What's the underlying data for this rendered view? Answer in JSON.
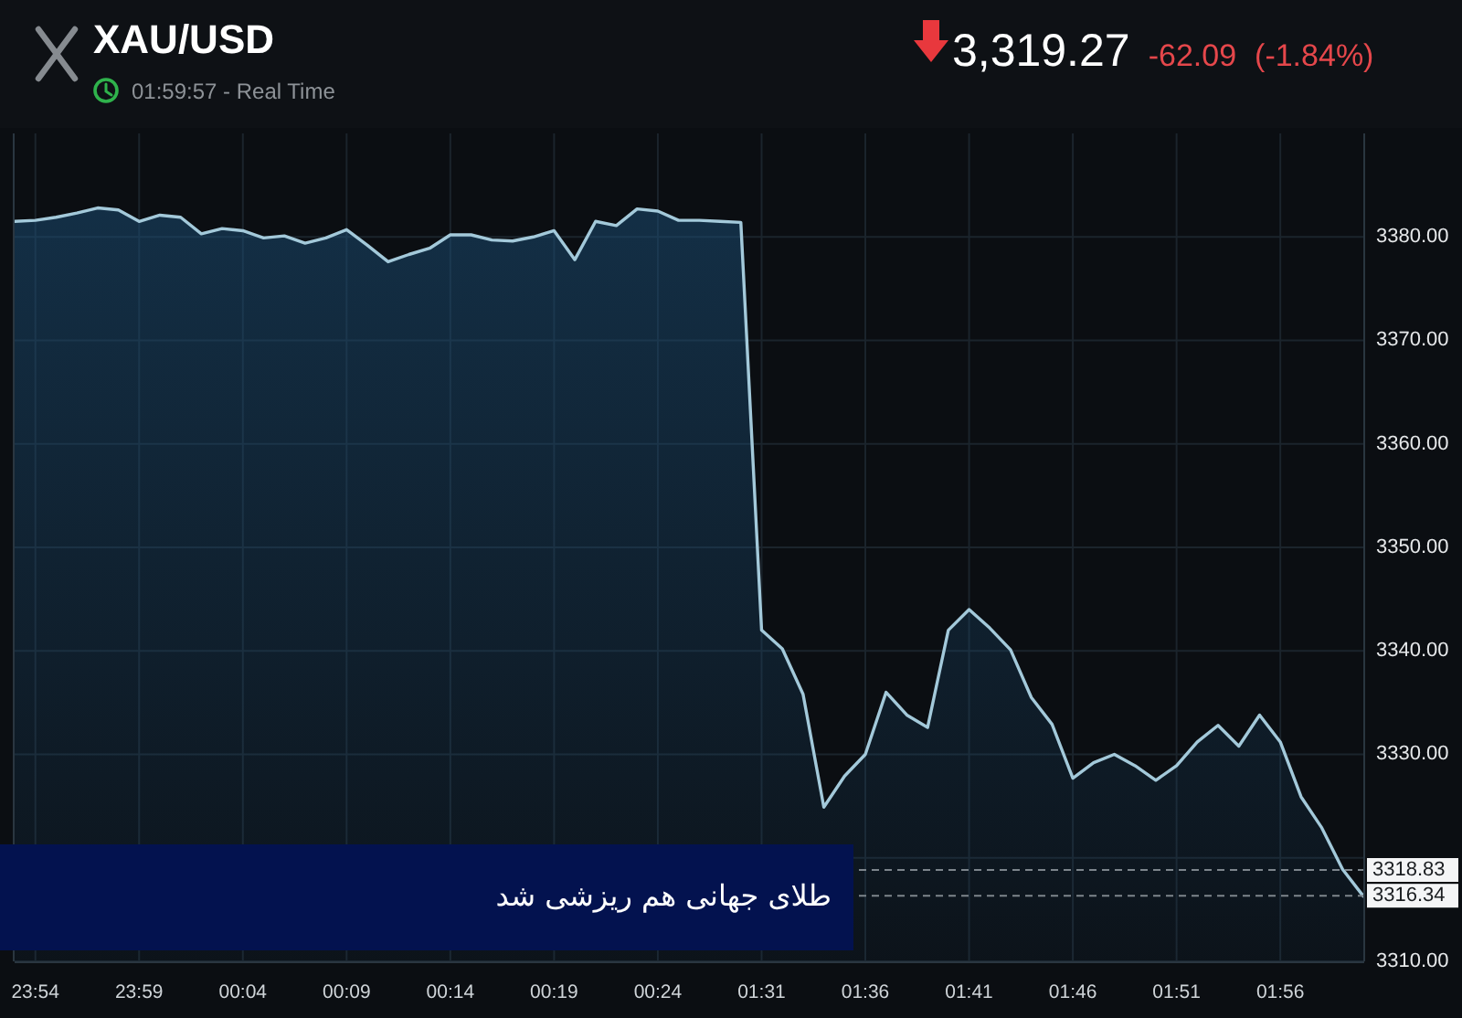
{
  "chart_data": {
    "type": "area",
    "title": "XAU/USD",
    "subtitle": "01:59:57 - Real Time",
    "annotations": [
      "3,319.27",
      "-62.09",
      "(-1.84%)",
      "طلای جهانی هم ریزشی شد"
    ],
    "categories": [
      null,
      "23:54",
      null,
      null,
      null,
      null,
      "23:59",
      null,
      null,
      null,
      null,
      "00:04",
      null,
      null,
      null,
      null,
      "00:09",
      null,
      null,
      null,
      null,
      "00:14",
      null,
      null,
      null,
      null,
      "00:19",
      null,
      null,
      null,
      null,
      "00:24",
      null,
      null,
      null,
      null,
      "01:31",
      null,
      null,
      null,
      null,
      "01:36",
      null,
      null,
      null,
      null,
      "01:41",
      null,
      null,
      null,
      null,
      "01:46",
      null,
      null,
      null,
      null,
      "01:51",
      null,
      null,
      null,
      null,
      "01:56",
      null,
      null,
      null,
      null
    ],
    "series": [
      {
        "color": "#a3c9da",
        "values": [
          3381.5,
          3381.6,
          3381.9,
          3382.3,
          3382.8,
          3382.6,
          3381.5,
          3382.1,
          3381.9,
          3380.3,
          3380.8,
          3380.6,
          3379.9,
          3380.1,
          3379.4,
          3379.9,
          3380.7,
          3379.2,
          3377.6,
          3378.3,
          3378.9,
          3380.2,
          3380.2,
          3379.7,
          3379.6,
          3380.0,
          3380.6,
          3377.8,
          3381.5,
          3381.1,
          3382.7,
          3382.5,
          3381.6,
          3381.6,
          3381.5,
          3381.4,
          3342.0,
          3340.2,
          3335.8,
          3324.9,
          3327.9,
          3330.0,
          3336.0,
          3333.8,
          3332.6,
          3342.0,
          3344.0,
          3342.2,
          3340.1,
          3335.5,
          3332.9,
          3327.7,
          3329.2,
          3330.0,
          3328.9,
          3327.5,
          3328.9,
          3331.2,
          3332.8,
          3330.8,
          3333.8,
          3331.2,
          3325.9,
          3322.9,
          3318.9,
          3316.3
        ]
      }
    ],
    "ylim": [
      3310,
      3390
    ],
    "yticks": [
      {
        "value": 3310,
        "label": "3310.00"
      },
      {
        "value": 3320,
        "label": null
      },
      {
        "value": 3330,
        "label": "3330.00"
      },
      {
        "value": 3340,
        "label": "3340.00"
      },
      {
        "value": 3350,
        "label": "3350.00"
      },
      {
        "value": 3360,
        "label": "3360.00"
      },
      {
        "value": 3370,
        "label": "3370.00"
      },
      {
        "value": 3380,
        "label": "3380.00"
      }
    ],
    "ref_lines": [
      {
        "axis": "y",
        "value": 3318.83,
        "label": "3318.83",
        "color": "#7d858c",
        "line_style": "dashed"
      },
      {
        "axis": "y",
        "value": 3316.34,
        "label": "3316.34",
        "color": "#7d858c",
        "line_style": "dashed"
      }
    ],
    "grid": true
  }
}
